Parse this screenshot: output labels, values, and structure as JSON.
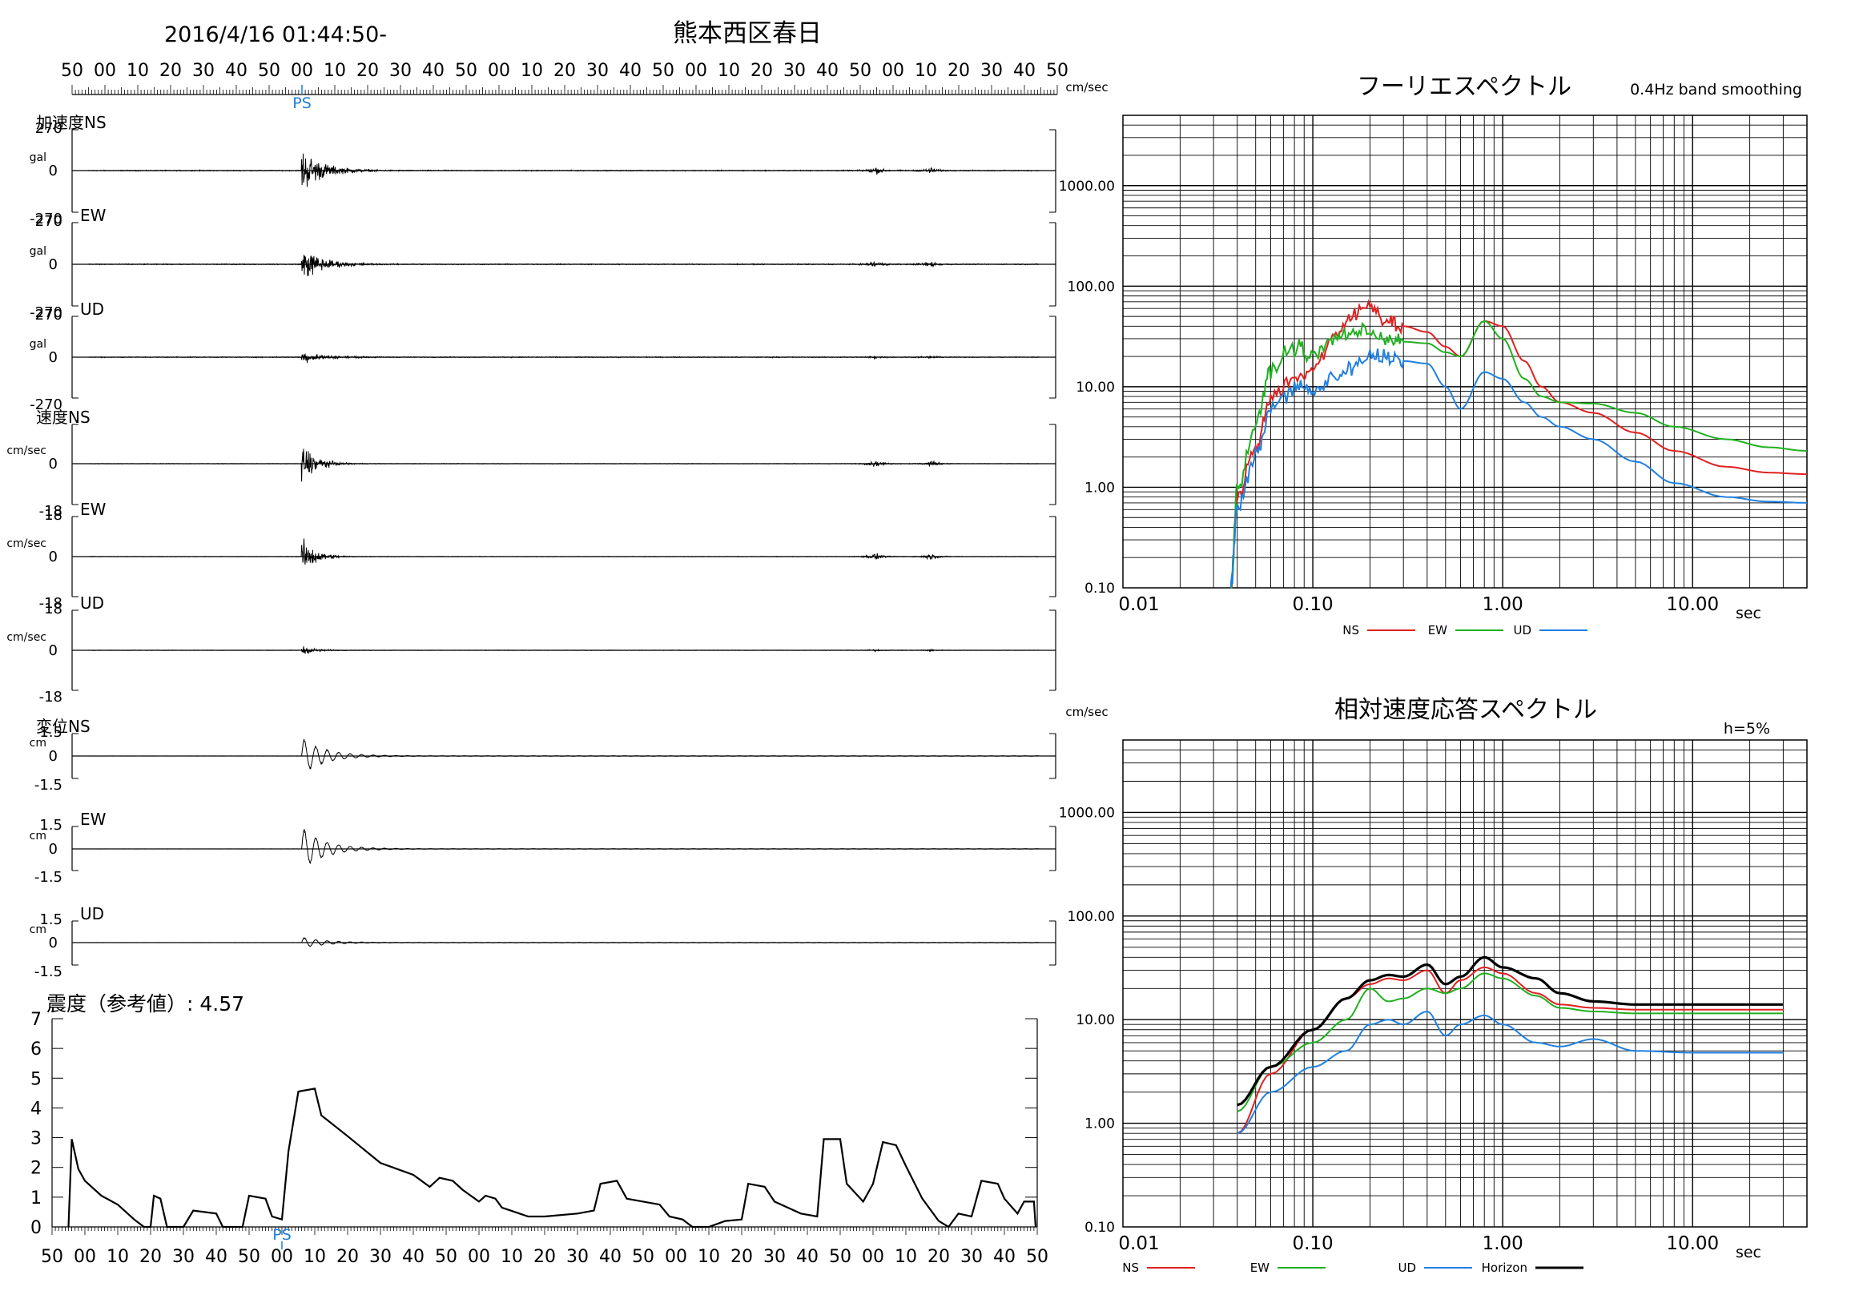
{
  "header": {
    "datetime": "2016/4/16 01:44:50-",
    "station": "熊本西区春日"
  },
  "time_ticks": [
    "50",
    "00",
    "10",
    "20",
    "30",
    "40",
    "50",
    "00",
    "10",
    "20",
    "30",
    "40",
    "50",
    "00",
    "10",
    "20",
    "30",
    "40",
    "50",
    "00",
    "10",
    "20",
    "30",
    "40",
    "50",
    "00",
    "10",
    "20",
    "30",
    "40",
    "50"
  ],
  "ps_label": "PS",
  "colors": {
    "ns": "#e02020",
    "ew": "#20b020",
    "ud": "#2080e0",
    "horizon": "#000000",
    "ps": "#1e7fd8"
  },
  "waveforms": [
    {
      "label": "加速度NS",
      "unit": "gal",
      "top": "270",
      "zero": "0",
      "bottom": "-270",
      "peak": 0.75,
      "type": "acc"
    },
    {
      "label": "EW",
      "unit": "gal",
      "top": "270",
      "zero": "0",
      "bottom": "-270",
      "peak": 0.6,
      "type": "acc"
    },
    {
      "label": "UD",
      "unit": "gal",
      "top": "270",
      "zero": "0",
      "bottom": "-270",
      "peak": 0.2,
      "type": "acc"
    },
    {
      "label": "速度NS",
      "unit": "cm/sec",
      "top": "",
      "zero": "0",
      "bottom": "-18",
      "peak": 0.8,
      "type": "vel"
    },
    {
      "label": "EW",
      "unit": "cm/sec",
      "top": "18",
      "zero": "0",
      "bottom": "-18",
      "peak": 0.65,
      "type": "vel"
    },
    {
      "label": "UD",
      "unit": "cm/sec",
      "top": "18",
      "zero": "0",
      "bottom": "-18",
      "peak": 0.15,
      "type": "vel"
    },
    {
      "label": "変位NS",
      "unit": "cm",
      "top": "1.5",
      "zero": "0",
      "bottom": "-1.5",
      "peak": 0.85,
      "type": "disp"
    },
    {
      "label": "EW",
      "unit": "cm",
      "top": "1.5",
      "zero": "0",
      "bottom": "-1.5",
      "peak": 1.0,
      "type": "disp"
    },
    {
      "label": "UD",
      "unit": "cm",
      "top": "1.5",
      "zero": "0",
      "bottom": "-1.5",
      "peak": 0.25,
      "type": "disp"
    }
  ],
  "intensity": {
    "title": "震度（参考値）: 4.57",
    "yticks": [
      "0",
      "1",
      "2",
      "3",
      "4",
      "5",
      "6",
      "7"
    ],
    "xticks": [
      "50",
      "00",
      "10",
      "20",
      "30",
      "40",
      "50",
      "00",
      "10",
      "20",
      "30",
      "40",
      "50",
      "00",
      "10",
      "20",
      "30",
      "40",
      "50",
      "00",
      "10",
      "20",
      "30",
      "40",
      "50",
      "00",
      "10",
      "20",
      "30",
      "40",
      "50"
    ],
    "ps_label": "PS"
  },
  "chart_data": [
    {
      "type": "line",
      "title": "フーリエスペクトル",
      "subtitle": "0.4Hz band smoothing",
      "ylabel": "cm/sec",
      "xlabel": "sec",
      "xscale": "log",
      "yscale": "log",
      "xlim": [
        0.01,
        40
      ],
      "ylim": [
        0.1,
        5000
      ],
      "xticks": [
        "0.01",
        "0.10",
        "1.00",
        "10.00"
      ],
      "yticks": [
        "0.10",
        "1.00",
        "10.00",
        "100.00",
        "1000.00"
      ],
      "legend": [
        "NS",
        "EW",
        "UD"
      ],
      "series": [
        {
          "name": "NS",
          "color": "#e02020",
          "x": [
            0.037,
            0.04,
            0.05,
            0.06,
            0.08,
            0.1,
            0.13,
            0.16,
            0.2,
            0.25,
            0.3,
            0.4,
            0.5,
            0.6,
            0.8,
            1.0,
            1.3,
            1.6,
            2.0,
            3.0,
            5.0,
            8.0,
            15,
            25,
            40
          ],
          "y": [
            0.1,
            0.8,
            2.5,
            8,
            12,
            15,
            30,
            50,
            65,
            45,
            40,
            35,
            25,
            20,
            45,
            40,
            18,
            10,
            7,
            5.5,
            3.5,
            2.3,
            1.6,
            1.4,
            1.35
          ]
        },
        {
          "name": "EW",
          "color": "#20b020",
          "x": [
            0.037,
            0.04,
            0.05,
            0.06,
            0.08,
            0.1,
            0.13,
            0.16,
            0.2,
            0.25,
            0.3,
            0.4,
            0.5,
            0.6,
            0.8,
            1.0,
            1.3,
            1.6,
            2.0,
            3.0,
            5.0,
            8.0,
            15,
            25,
            40
          ],
          "y": [
            0.1,
            1.0,
            4,
            15,
            25,
            20,
            30,
            35,
            35,
            30,
            28,
            27,
            22,
            20,
            45,
            30,
            12,
            8,
            7,
            6.8,
            5.5,
            4,
            3,
            2.5,
            2.3
          ]
        },
        {
          "name": "UD",
          "color": "#2080e0",
          "x": [
            0.037,
            0.04,
            0.05,
            0.06,
            0.08,
            0.1,
            0.13,
            0.16,
            0.2,
            0.25,
            0.3,
            0.4,
            0.5,
            0.6,
            0.8,
            1.0,
            1.3,
            1.6,
            2.0,
            3.0,
            5.0,
            8.0,
            15,
            25,
            40
          ],
          "y": [
            0.1,
            0.6,
            2,
            6,
            10,
            9,
            12,
            15,
            20,
            20,
            18,
            17,
            10,
            6,
            14,
            12,
            7,
            5,
            4,
            3,
            1.8,
            1.1,
            0.8,
            0.72,
            0.7
          ]
        }
      ]
    },
    {
      "type": "line",
      "title": "相対速度応答スペクトル",
      "annotation": "h=5%",
      "ylabel": "cm/sec",
      "xlabel": "sec",
      "xscale": "log",
      "yscale": "log",
      "xlim": [
        0.01,
        40
      ],
      "ylim": [
        0.1,
        5000
      ],
      "xticks": [
        "0.01",
        "0.10",
        "1.00",
        "10.00"
      ],
      "yticks": [
        "0.10",
        "1.00",
        "10.00",
        "100.00",
        "1000.00"
      ],
      "legend": [
        "NS",
        "EW",
        "UD",
        "Horizon"
      ],
      "series": [
        {
          "name": "NS",
          "color": "#e02020",
          "x": [
            0.04,
            0.06,
            0.1,
            0.15,
            0.2,
            0.25,
            0.3,
            0.4,
            0.5,
            0.6,
            0.8,
            1.0,
            1.5,
            2.0,
            3.0,
            5.0,
            10,
            20,
            30
          ],
          "y": [
            0.8,
            3,
            8,
            16,
            22,
            25,
            24,
            30,
            18,
            24,
            32,
            28,
            18,
            14,
            13,
            12.5,
            12.5,
            12.5,
            12.5
          ]
        },
        {
          "name": "EW",
          "color": "#20b020",
          "x": [
            0.04,
            0.06,
            0.1,
            0.15,
            0.2,
            0.25,
            0.3,
            0.4,
            0.5,
            0.6,
            0.8,
            1.0,
            1.5,
            2.0,
            3.0,
            5.0,
            10,
            20,
            30
          ],
          "y": [
            1.3,
            3.5,
            6,
            10,
            20,
            15,
            16,
            20,
            18,
            20,
            28,
            25,
            17,
            13,
            12,
            11.5,
            11.5,
            11.5,
            11.5
          ]
        },
        {
          "name": "UD",
          "color": "#2080e0",
          "x": [
            0.04,
            0.06,
            0.1,
            0.15,
            0.2,
            0.25,
            0.3,
            0.4,
            0.5,
            0.6,
            0.8,
            1.0,
            1.5,
            2.0,
            3.0,
            5.0,
            10,
            20,
            30
          ],
          "y": [
            0.8,
            2,
            3.5,
            5,
            9,
            10,
            9,
            12,
            7,
            9,
            11,
            9,
            6,
            5.5,
            6.5,
            5,
            4.8,
            4.8,
            4.8
          ]
        },
        {
          "name": "Horizon",
          "color": "#000000",
          "x": [
            0.04,
            0.06,
            0.1,
            0.15,
            0.2,
            0.25,
            0.3,
            0.4,
            0.5,
            0.6,
            0.8,
            1.0,
            1.5,
            2.0,
            3.0,
            5.0,
            10,
            20,
            30
          ],
          "y": [
            1.5,
            3.5,
            8,
            16,
            24,
            27,
            26,
            34,
            22,
            26,
            40,
            32,
            25,
            18,
            15,
            14,
            14,
            14,
            14
          ]
        }
      ]
    }
  ]
}
